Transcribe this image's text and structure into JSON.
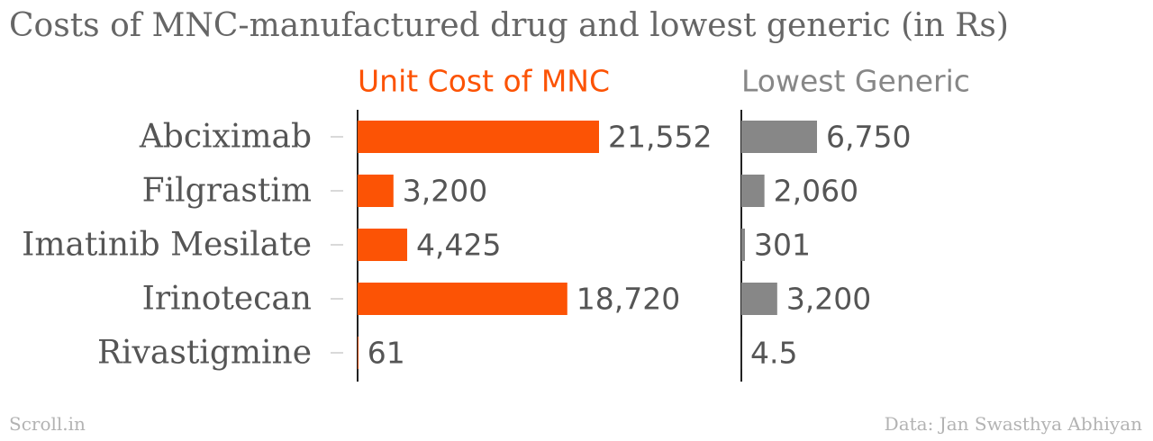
{
  "title": "Costs of MNC-manufactured drug and lowest generic (in Rs)",
  "chart_data": {
    "type": "bar",
    "categories": [
      "Abciximab",
      "Filgrastim",
      "Imatinib Mesilate",
      "Irinotecan",
      "Rivastigmine"
    ],
    "series": [
      {
        "name": "Unit Cost of MNC",
        "values": [
          21552,
          3200,
          4425,
          18720,
          61
        ],
        "labels": [
          "21,552",
          "3,200",
          "4,425",
          "18,720",
          "61"
        ],
        "color": "#fc5305"
      },
      {
        "name": "Lowest Generic",
        "values": [
          6750,
          2060,
          301,
          3200,
          4.5
        ],
        "labels": [
          "6,750",
          "2,060",
          "301",
          "3,200",
          "4.5"
        ],
        "color": "#878787"
      }
    ],
    "scale_max": 21552,
    "legend": "panel-headers"
  },
  "footer": {
    "source_left": "Scroll.in",
    "source_right": "Data: Jan Swasthya Abhiyan"
  }
}
